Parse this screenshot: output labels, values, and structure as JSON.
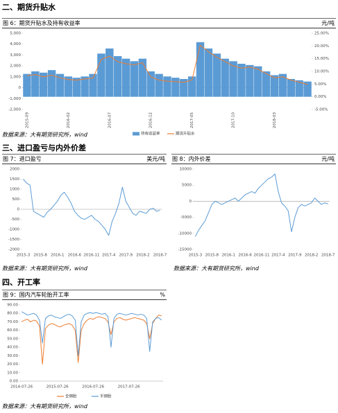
{
  "sections": [
    "二、期货升贴水",
    "三、进口盈亏与内外价差",
    "四、开工率"
  ],
  "chart_data": [
    {
      "type": "combo",
      "title": "图 6：期货升贴水及持有收益率",
      "y_label": "元/吨",
      "source": "数据来源：大有期货研究所，wind",
      "categories": [
        "2015-09",
        null,
        null,
        null,
        null,
        "2016-02",
        null,
        null,
        null,
        null,
        "2016-07",
        null,
        null,
        null,
        null,
        "2016-12",
        null,
        null,
        null,
        null,
        "2017-05",
        null,
        null,
        null,
        null,
        "2017-10",
        null,
        null,
        null,
        null,
        "2018-03",
        null,
        null,
        null,
        null
      ],
      "ylim": [
        -2000,
        5000
      ],
      "yticks": [
        {
          "value": 5000,
          "label": "5,000"
        },
        {
          "value": 4000,
          "label": "4,000"
        },
        {
          "value": 3000,
          "label": "3,000"
        },
        {
          "value": 2000,
          "label": "2,000"
        },
        {
          "value": 1000,
          "label": "1,000"
        },
        0,
        {
          "value": -1000,
          "label": "-1,000"
        },
        {
          "value": -2000,
          "label": "-2,000"
        }
      ],
      "y2lim": [
        -5,
        25
      ],
      "y2ticks": [
        {
          "value": 25,
          "label": "25.00%"
        },
        {
          "value": 20,
          "label": "20.00%"
        },
        {
          "value": 15,
          "label": "15.00%"
        },
        {
          "value": 10,
          "label": "10.00%"
        },
        {
          "value": 5,
          "label": "5.00%"
        },
        {
          "value": 0,
          "label": "0.00%"
        },
        {
          "value": -5,
          "label": "-5.00%"
        }
      ],
      "legend": "bottom",
      "series": [
        {
          "name": "持有收益率",
          "type": "bar",
          "axis": "y2",
          "color": "#5b9bd5",
          "values": [
            9,
            10,
            9.5,
            10.5,
            9,
            8,
            7.5,
            8,
            9,
            17,
            19,
            16,
            15,
            14,
            15,
            10,
            9,
            8,
            7.5,
            7,
            8,
            21.5,
            19,
            17,
            15,
            14,
            13,
            12.5,
            12,
            10,
            8.5,
            9,
            7,
            6.5,
            6
          ]
        },
        {
          "name": "期货升贴水",
          "type": "line",
          "color": "#ed7d31",
          "values": [
            1100,
            1200,
            1000,
            1150,
            900,
            750,
            700,
            800,
            900,
            2600,
            2900,
            2400,
            2200,
            2100,
            2300,
            1000,
            700,
            600,
            550,
            500,
            700,
            3900,
            3300,
            2800,
            2400,
            2000,
            1800,
            1900,
            1700,
            1300,
            900,
            1000,
            700,
            500,
            300
          ]
        }
      ]
    },
    {
      "type": "line",
      "title": "图 7：进口盈亏",
      "y_label": "美元/吨",
      "source": "数据来源：大有期货研究所，wind",
      "categories": [
        "2015-3",
        null,
        null,
        null,
        null,
        "2015-8",
        null,
        null,
        null,
        null,
        "2016-1",
        null,
        null,
        null,
        null,
        "2016-6",
        null,
        null,
        null,
        null,
        "2016-11",
        null,
        null,
        null,
        null,
        "2017-4",
        null,
        null,
        null,
        null,
        "2017-9",
        null,
        null,
        null,
        null,
        "2018-2",
        null,
        null,
        null,
        null,
        "2018-7"
      ],
      "ylim": [
        -2000,
        2000
      ],
      "yticks": [
        2000,
        1500,
        1000,
        500,
        0,
        -500,
        -1000,
        -1500,
        -2000
      ],
      "series": [
        {
          "color": "#5b9bd5",
          "values": [
            1500,
            1300,
            1200,
            -100,
            -200,
            -300,
            -400,
            -150,
            0,
            200,
            400,
            700,
            850,
            600,
            300,
            -100,
            -300,
            -450,
            -500,
            -400,
            -300,
            -500,
            -600,
            -800,
            -1000,
            -1300,
            -600,
            -200,
            300,
            1100,
            400,
            100,
            -200,
            -300,
            -100,
            -150,
            -200,
            0,
            50,
            -100,
            -50
          ]
        }
      ]
    },
    {
      "type": "line",
      "title": "图 8：内外价差",
      "y_label": "元/吨",
      "source": "数据来源：大有期货研究所，wind",
      "categories": [
        "2015-3",
        null,
        null,
        null,
        null,
        "2015-8",
        null,
        null,
        null,
        null,
        "2016-1",
        null,
        null,
        null,
        null,
        "2016-6",
        null,
        null,
        null,
        null,
        "2016-11",
        null,
        null,
        null,
        null,
        "2017-4",
        null,
        null,
        null,
        null,
        "2017-9",
        null,
        null,
        null,
        null,
        "2018-2",
        null,
        null,
        null,
        null,
        "2018-7"
      ],
      "ylim": [
        -15000,
        10000
      ],
      "yticks": [
        10000,
        5000,
        0,
        -5000,
        -10000,
        -15000
      ],
      "series": [
        {
          "color": "#5b9bd5",
          "values": [
            -11000,
            -9000,
            -7500,
            -6000,
            -3500,
            -1000,
            0,
            -500,
            -1000,
            -500,
            0,
            500,
            1000,
            0,
            1000,
            2000,
            2500,
            3000,
            2500,
            4000,
            5000,
            6000,
            7000,
            7500,
            8500,
            3000,
            -500,
            -1500,
            -3000,
            -9500,
            -5000,
            -2000,
            -1000,
            -1500,
            -1000,
            -500,
            1000,
            0,
            -1000,
            -500,
            -800
          ]
        }
      ]
    },
    {
      "type": "line",
      "title": "图 9：国内汽车轮胎开工率",
      "y_label": "%",
      "source": "数据来源：大有期货研究所，wind",
      "categories": [
        "2014-07-26",
        null,
        null,
        null,
        null,
        null,
        null,
        null,
        null,
        null,
        null,
        null,
        "2015-07-26",
        null,
        null,
        null,
        null,
        null,
        null,
        null,
        null,
        null,
        null,
        null,
        "2016-07-26",
        null,
        null,
        null,
        null,
        null,
        null,
        null,
        null,
        null,
        null,
        null,
        "2017-07-26",
        null,
        null,
        null,
        null,
        null,
        null,
        null,
        null,
        null,
        null,
        null
      ],
      "ylim": [
        0,
        90
      ],
      "yticks": [
        {
          "value": 90,
          "label": "90.00"
        },
        {
          "value": 80,
          "label": "80.00"
        },
        {
          "value": 70,
          "label": "70.00"
        },
        {
          "value": 60,
          "label": "60.00"
        },
        {
          "value": 50,
          "label": "50.00"
        },
        {
          "value": 40,
          "label": "40.00"
        },
        {
          "value": 30,
          "label": "30.00"
        },
        {
          "value": 20,
          "label": "20.00"
        },
        {
          "value": 10,
          "label": "10.00"
        },
        {
          "value": 0,
          "label": "0.00"
        }
      ],
      "legend": "bottom",
      "series": [
        {
          "name": "全钢胎",
          "color": "#ed7d31",
          "values": [
            70,
            72,
            73,
            70,
            72,
            71,
            65,
            20,
            62,
            66,
            68,
            67,
            65,
            64,
            66,
            67,
            68,
            66,
            60,
            22,
            60,
            68,
            72,
            74,
            73,
            75,
            76,
            75,
            74,
            70,
            55,
            70,
            74,
            75,
            73,
            72,
            73,
            74,
            75,
            74,
            73,
            72,
            68,
            50,
            68,
            74,
            78,
            77
          ]
        },
        {
          "name": "半钢胎",
          "color": "#5b9bd5",
          "values": [
            82,
            80,
            78,
            79,
            80,
            78,
            72,
            45,
            74,
            77,
            78,
            76,
            75,
            74,
            76,
            78,
            79,
            77,
            72,
            30,
            70,
            78,
            80,
            81,
            80,
            81,
            80,
            79,
            80,
            76,
            40,
            74,
            79,
            80,
            79,
            78,
            79,
            80,
            79,
            78,
            79,
            78,
            74,
            35,
            70,
            74,
            75,
            72
          ]
        }
      ]
    }
  ]
}
